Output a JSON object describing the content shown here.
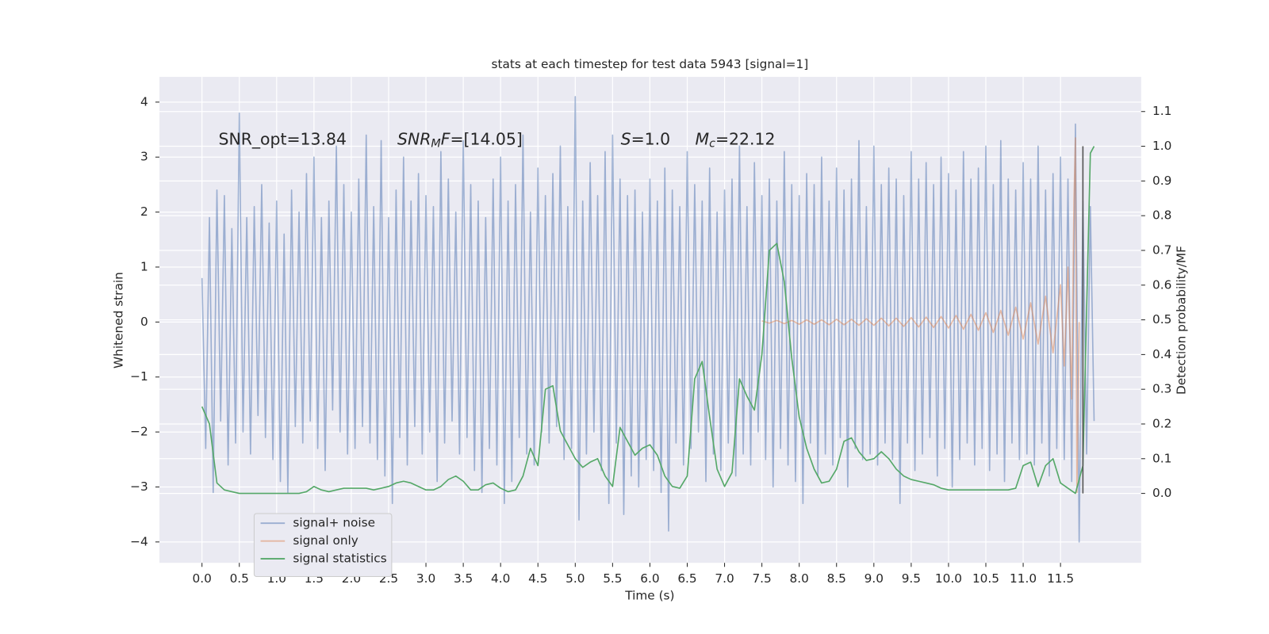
{
  "chart_data": {
    "type": "line",
    "title": "stats at each timestep for test data 5943 [signal=1]",
    "xlabel": "Time (s)",
    "ylabel": "Whitened strain",
    "y2label": "Detection probability/MF",
    "xlim": [
      -0.57,
      12.58
    ],
    "ylim": [
      -4.38,
      4.46
    ],
    "y2lim": [
      -0.2,
      1.2
    ],
    "grid": true,
    "legend": "lower left",
    "xticks": [
      {
        "value": 0,
        "label": "0.0"
      },
      0.5,
      {
        "value": 1,
        "label": "1.0"
      },
      1.5,
      {
        "value": 2,
        "label": "2.0"
      },
      2.5,
      {
        "value": 3,
        "label": "3.0"
      },
      3.5,
      {
        "value": 4,
        "label": "4.0"
      },
      4.5,
      {
        "value": 5,
        "label": "5.0"
      },
      5.5,
      {
        "value": 6,
        "label": "6.0"
      },
      6.5,
      {
        "value": 7,
        "label": "7.0"
      },
      7.5,
      {
        "value": 8,
        "label": "8.0"
      },
      8.5,
      {
        "value": 9,
        "label": "9.0"
      },
      9.5,
      {
        "value": 10,
        "label": "10.0"
      },
      10.5,
      {
        "value": 11,
        "label": "11.0"
      },
      11.5
    ],
    "yticks": [
      {
        "value": -4,
        "label": "−4"
      },
      {
        "value": -3,
        "label": "−3"
      },
      {
        "value": -2,
        "label": "−2"
      },
      {
        "value": -1,
        "label": "−1"
      },
      0,
      1,
      2,
      3,
      4
    ],
    "y2ticks": [
      {
        "value": 0,
        "label": "0.0"
      },
      0.1,
      0.2,
      0.3,
      0.4,
      0.5,
      0.6,
      0.7,
      0.8,
      0.9,
      {
        "value": 1,
        "label": "1.0"
      },
      1.1
    ],
    "annotations": [
      [
        {
          "text": "SNR_opt=13.84"
        }
      ],
      [
        {
          "text": "SNR",
          "style": "italic"
        },
        {
          "text": "M",
          "style": "sub"
        },
        {
          "text": "F",
          "style": "italic"
        },
        {
          "text": "=[14.05]"
        }
      ],
      [
        {
          "text": "S",
          "style": "italic"
        },
        {
          "text": "=1.0"
        }
      ],
      [
        {
          "text": "M",
          "style": "italic"
        },
        {
          "text": "c",
          "style": "sub"
        },
        {
          "text": "=22.12"
        }
      ]
    ],
    "vlines": [
      {
        "x": 11.8,
        "ymin": 0,
        "ymax": 1,
        "axis": "y2",
        "color": "#555555"
      }
    ],
    "series": [
      {
        "name": "signal+ noise",
        "color": "#4c72b0",
        "opacity": 0.5,
        "x": [
          0,
          0.05,
          0.1,
          0.15,
          0.2,
          0.25,
          0.3,
          0.35,
          0.4,
          0.45,
          0.5,
          0.55,
          0.6,
          0.65,
          0.7,
          0.75,
          0.8,
          0.85,
          0.9,
          0.95,
          1,
          1.05,
          1.1,
          1.15,
          1.2,
          1.25,
          1.3,
          1.35,
          1.4,
          1.45,
          1.5,
          1.55,
          1.6,
          1.65,
          1.7,
          1.75,
          1.8,
          1.85,
          1.9,
          1.95,
          2,
          2.05,
          2.1,
          2.15,
          2.2,
          2.25,
          2.3,
          2.35,
          2.4,
          2.45,
          2.5,
          2.55,
          2.6,
          2.65,
          2.7,
          2.75,
          2.8,
          2.85,
          2.9,
          2.95,
          3,
          3.05,
          3.1,
          3.15,
          3.2,
          3.25,
          3.3,
          3.35,
          3.4,
          3.45,
          3.5,
          3.55,
          3.6,
          3.65,
          3.7,
          3.75,
          3.8,
          3.85,
          3.9,
          3.95,
          4,
          4.05,
          4.1,
          4.15,
          4.2,
          4.25,
          4.3,
          4.35,
          4.4,
          4.45,
          4.5,
          4.55,
          4.6,
          4.65,
          4.7,
          4.75,
          4.8,
          4.85,
          4.9,
          4.95,
          5,
          5.05,
          5.1,
          5.15,
          5.2,
          5.25,
          5.3,
          5.35,
          5.4,
          5.45,
          5.5,
          5.55,
          5.6,
          5.65,
          5.7,
          5.75,
          5.8,
          5.85,
          5.9,
          5.95,
          6,
          6.05,
          6.1,
          6.15,
          6.2,
          6.25,
          6.3,
          6.35,
          6.4,
          6.45,
          6.5,
          6.55,
          6.6,
          6.65,
          6.7,
          6.75,
          6.8,
          6.85,
          6.9,
          6.95,
          7,
          7.05,
          7.1,
          7.15,
          7.2,
          7.25,
          7.3,
          7.35,
          7.4,
          7.45,
          7.5,
          7.55,
          7.6,
          7.65,
          7.7,
          7.75,
          7.8,
          7.85,
          7.9,
          7.95,
          8,
          8.05,
          8.1,
          8.15,
          8.2,
          8.25,
          8.3,
          8.35,
          8.4,
          8.45,
          8.5,
          8.55,
          8.6,
          8.65,
          8.7,
          8.75,
          8.8,
          8.85,
          8.9,
          8.95,
          9,
          9.05,
          9.1,
          9.15,
          9.2,
          9.25,
          9.3,
          9.35,
          9.4,
          9.45,
          9.5,
          9.55,
          9.6,
          9.65,
          9.7,
          9.75,
          9.8,
          9.85,
          9.9,
          9.95,
          10,
          10.05,
          10.1,
          10.15,
          10.2,
          10.25,
          10.3,
          10.35,
          10.4,
          10.45,
          10.5,
          10.55,
          10.6,
          10.65,
          10.7,
          10.75,
          10.8,
          10.85,
          10.9,
          10.95,
          11,
          11.05,
          11.1,
          11.15,
          11.2,
          11.25,
          11.3,
          11.35,
          11.4,
          11.45,
          11.5,
          11.55,
          11.6,
          11.65,
          11.7,
          11.75,
          11.8,
          11.85,
          11.9,
          11.95
        ],
        "values": [
          0.8,
          -2.3,
          1.9,
          -3.1,
          2.4,
          -1.8,
          2.3,
          -2.6,
          1.7,
          -2.2,
          3.8,
          -2.0,
          1.9,
          -2.4,
          2.1,
          -1.7,
          2.5,
          -2.1,
          1.8,
          -2.5,
          2.2,
          -2.9,
          1.6,
          -3.1,
          2.4,
          -1.9,
          2.0,
          -2.2,
          2.7,
          -1.8,
          3.0,
          -2.3,
          1.9,
          -2.7,
          2.2,
          -1.6,
          3.2,
          -2.0,
          2.5,
          -2.4,
          2.0,
          -2.3,
          2.6,
          -1.9,
          3.4,
          -2.2,
          2.1,
          -2.5,
          3.3,
          -2.8,
          1.9,
          -3.3,
          2.4,
          -2.1,
          3.0,
          -2.6,
          2.2,
          -1.9,
          2.7,
          -2.4,
          2.3,
          -2.0,
          2.1,
          -2.9,
          3.1,
          -2.2,
          2.6,
          -1.8,
          2.0,
          -2.4,
          3.3,
          -2.1,
          2.5,
          -2.7,
          2.2,
          -3.1,
          1.9,
          -2.3,
          2.6,
          -2.6,
          3.0,
          -3.3,
          2.2,
          -2.9,
          2.5,
          -2.1,
          3.4,
          -2.4,
          2.0,
          -2.6,
          2.8,
          -2.0,
          2.3,
          -2.2,
          2.7,
          -1.9,
          3.2,
          -2.5,
          2.1,
          -2.3,
          4.1,
          -3.6,
          2.2,
          -2.4,
          2.9,
          -2.0,
          2.3,
          -2.7,
          3.1,
          -3.3,
          3.4,
          -2.2,
          2.6,
          -3.5,
          2.3,
          -2.8,
          2.4,
          -3.0,
          2.0,
          -2.5,
          2.6,
          -2.7,
          2.2,
          -3.1,
          2.8,
          -3.8,
          2.4,
          -2.2,
          2.1,
          -2.6,
          3.1,
          -2.3,
          2.5,
          -2.0,
          2.2,
          -2.9,
          2.8,
          -2.4,
          2.0,
          -2.7,
          2.4,
          -2.2,
          2.6,
          -2.8,
          3.2,
          -2.4,
          2.1,
          -2.6,
          2.9,
          -2.0,
          2.3,
          -2.5,
          2.6,
          -3.0,
          2.2,
          -2.3,
          3.1,
          -2.6,
          2.5,
          -2.9,
          2.3,
          -3.3,
          2.7,
          -2.2,
          2.5,
          -2.8,
          3.0,
          -2.4,
          2.2,
          -2.6,
          2.8,
          -2.1,
          2.4,
          -3.0,
          2.6,
          -2.3,
          3.3,
          -2.5,
          2.1,
          -2.4,
          3.2,
          -2.6,
          2.5,
          -2.2,
          2.8,
          -2.5,
          2.6,
          -3.3,
          2.3,
          -2.2,
          3.1,
          -2.7,
          2.6,
          -2.4,
          2.9,
          -2.1,
          2.5,
          -2.8,
          3.0,
          -2.3,
          2.7,
          -3.0,
          2.4,
          -2.5,
          3.1,
          -2.2,
          2.6,
          -2.6,
          2.8,
          -2.3,
          3.2,
          -2.7,
          2.5,
          -2.4,
          3.3,
          -2.9,
          2.6,
          -2.2,
          2.4,
          -2.5,
          2.9,
          -2.4,
          2.6,
          -2.6,
          3.2,
          -2.2,
          2.4,
          -2.8,
          2.7,
          -2.3,
          3.0,
          -2.5,
          2.6,
          -2.9,
          3.6,
          -4.0,
          2.2,
          -2.4,
          2.1,
          -1.8
        ]
      },
      {
        "name": "signal only",
        "color": "#dd8452",
        "opacity": 0.5,
        "x": [
          7.5,
          7.6,
          7.7,
          7.8,
          7.9,
          8,
          8.1,
          8.2,
          8.3,
          8.4,
          8.5,
          8.6,
          8.7,
          8.8,
          8.9,
          9,
          9.1,
          9.2,
          9.3,
          9.4,
          9.5,
          9.6,
          9.7,
          9.8,
          9.9,
          10,
          10.1,
          10.2,
          10.3,
          10.4,
          10.5,
          10.6,
          10.7,
          10.8,
          10.9,
          11,
          11.1,
          11.2,
          11.3,
          11.4,
          11.5,
          11.55,
          11.6,
          11.65,
          11.68,
          11.7,
          11.72,
          11.75
        ],
        "values": [
          0.02,
          -0.02,
          0.03,
          -0.03,
          0.03,
          -0.04,
          0.04,
          -0.04,
          0.04,
          -0.05,
          0.05,
          -0.05,
          0.05,
          -0.06,
          0.06,
          -0.06,
          0.07,
          -0.07,
          0.07,
          -0.08,
          0.08,
          -0.09,
          0.09,
          -0.1,
          0.1,
          -0.11,
          0.12,
          -0.13,
          0.14,
          -0.15,
          0.17,
          -0.19,
          0.21,
          -0.24,
          0.27,
          -0.31,
          0.35,
          -0.4,
          0.47,
          -0.56,
          0.68,
          -0.8,
          1.0,
          -1.4,
          2.2,
          3.35,
          -3.1,
          0.0
        ]
      },
      {
        "name": "signal statistics",
        "color": "#55a868",
        "opacity": 1,
        "axis": "y2",
        "x": [
          0,
          0.1,
          0.2,
          0.3,
          0.4,
          0.5,
          0.6,
          0.7,
          0.8,
          0.9,
          1,
          1.1,
          1.2,
          1.3,
          1.4,
          1.5,
          1.6,
          1.7,
          1.8,
          1.9,
          2,
          2.1,
          2.2,
          2.3,
          2.4,
          2.5,
          2.6,
          2.7,
          2.8,
          2.9,
          3,
          3.1,
          3.2,
          3.3,
          3.4,
          3.5,
          3.6,
          3.7,
          3.8,
          3.9,
          4,
          4.1,
          4.2,
          4.3,
          4.4,
          4.5,
          4.6,
          4.7,
          4.8,
          4.9,
          5,
          5.1,
          5.2,
          5.3,
          5.4,
          5.5,
          5.6,
          5.7,
          5.8,
          5.9,
          6,
          6.1,
          6.2,
          6.3,
          6.4,
          6.5,
          6.6,
          6.7,
          6.8,
          6.9,
          7,
          7.1,
          7.2,
          7.3,
          7.4,
          7.5,
          7.6,
          7.7,
          7.8,
          7.9,
          8,
          8.1,
          8.2,
          8.3,
          8.4,
          8.5,
          8.6,
          8.7,
          8.8,
          8.9,
          9,
          9.1,
          9.2,
          9.3,
          9.4,
          9.5,
          9.6,
          9.7,
          9.8,
          9.9,
          10,
          10.1,
          10.2,
          10.3,
          10.4,
          10.5,
          10.6,
          10.7,
          10.8,
          10.9,
          11,
          11.1,
          11.2,
          11.3,
          11.4,
          11.5,
          11.6,
          11.7,
          11.8,
          11.9,
          11.95
        ],
        "values": [
          0.25,
          0.2,
          0.03,
          0.01,
          0.005,
          0,
          0,
          0,
          0,
          0,
          0,
          0,
          0,
          0,
          0.005,
          0.02,
          0.01,
          0.005,
          0.01,
          0.015,
          0.015,
          0.015,
          0.015,
          0.01,
          0.015,
          0.02,
          0.03,
          0.035,
          0.03,
          0.02,
          0.01,
          0.01,
          0.02,
          0.04,
          0.05,
          0.035,
          0.01,
          0.01,
          0.025,
          0.03,
          0.015,
          0.005,
          0.01,
          0.05,
          0.13,
          0.08,
          0.3,
          0.31,
          0.18,
          0.14,
          0.1,
          0.075,
          0.09,
          0.1,
          0.05,
          0.02,
          0.19,
          0.15,
          0.11,
          0.13,
          0.14,
          0.11,
          0.05,
          0.02,
          0.015,
          0.05,
          0.33,
          0.38,
          0.22,
          0.07,
          0.02,
          0.06,
          0.33,
          0.28,
          0.24,
          0.4,
          0.7,
          0.72,
          0.61,
          0.39,
          0.22,
          0.13,
          0.07,
          0.03,
          0.035,
          0.07,
          0.15,
          0.16,
          0.12,
          0.095,
          0.1,
          0.12,
          0.1,
          0.07,
          0.05,
          0.04,
          0.035,
          0.03,
          0.025,
          0.015,
          0.01,
          0.01,
          0.01,
          0.01,
          0.01,
          0.01,
          0.01,
          0.01,
          0.01,
          0.015,
          0.08,
          0.09,
          0.02,
          0.08,
          0.1,
          0.03,
          0.015,
          0,
          0.08,
          0.98,
          1.0
        ]
      }
    ]
  }
}
